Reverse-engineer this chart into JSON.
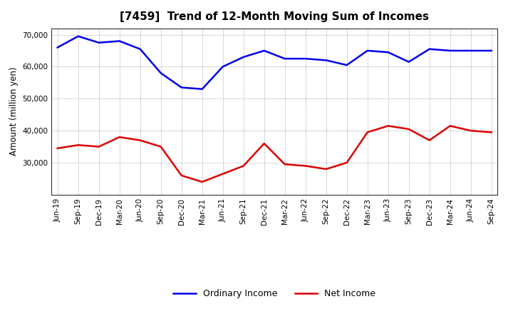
{
  "title": "[7459]  Trend of 12-Month Moving Sum of Incomes",
  "ylabel": "Amount (million yen)",
  "background_color": "#ffffff",
  "grid_color": "#888888",
  "plot_bg_color": "#ffffff",
  "x_labels": [
    "Jun-19",
    "Sep-19",
    "Dec-19",
    "Mar-20",
    "Jun-20",
    "Sep-20",
    "Dec-20",
    "Mar-21",
    "Jun-21",
    "Sep-21",
    "Dec-21",
    "Mar-22",
    "Jun-22",
    "Sep-22",
    "Dec-22",
    "Mar-23",
    "Jun-23",
    "Sep-23",
    "Dec-23",
    "Mar-24",
    "Jun-24",
    "Sep-24"
  ],
  "ordinary_income": [
    66000,
    69500,
    67500,
    68000,
    65500,
    58000,
    53500,
    53000,
    60000,
    63000,
    65000,
    62500,
    62500,
    62000,
    60500,
    65000,
    64500,
    61500,
    65500,
    65000,
    65000,
    65000
  ],
  "net_income": [
    34500,
    35500,
    35000,
    38000,
    37000,
    35000,
    26000,
    24000,
    26500,
    29000,
    36000,
    29500,
    29000,
    28000,
    30000,
    39500,
    41500,
    40500,
    37000,
    41500,
    40000,
    39500
  ],
  "ordinary_color": "#0000ee",
  "net_color": "#dd0000",
  "ylim_min": 20000,
  "ylim_max": 72000,
  "yticks": [
    30000,
    40000,
    50000,
    60000,
    70000
  ],
  "line_width": 1.8,
  "title_fontsize": 11,
  "tick_fontsize": 7.5,
  "ylabel_fontsize": 8.5,
  "legend_fontsize": 9
}
